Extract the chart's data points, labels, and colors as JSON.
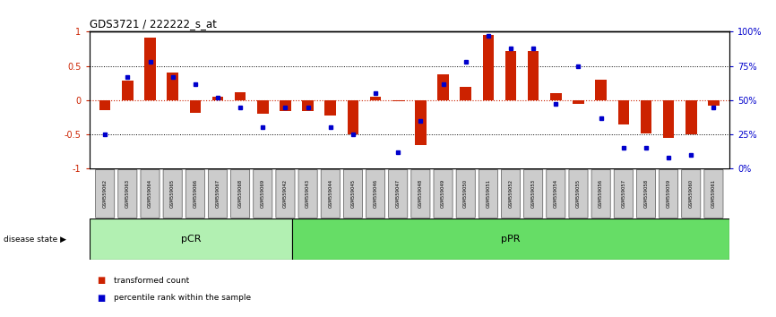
{
  "title": "GDS3721 / 222222_s_at",
  "samples": [
    "GSM559062",
    "GSM559063",
    "GSM559064",
    "GSM559065",
    "GSM559066",
    "GSM559067",
    "GSM559068",
    "GSM559069",
    "GSM559042",
    "GSM559043",
    "GSM559044",
    "GSM559045",
    "GSM559046",
    "GSM559047",
    "GSM559048",
    "GSM559049",
    "GSM559050",
    "GSM559051",
    "GSM559052",
    "GSM559053",
    "GSM559054",
    "GSM559055",
    "GSM559056",
    "GSM559057",
    "GSM559058",
    "GSM559059",
    "GSM559060",
    "GSM559061"
  ],
  "transformed_count": [
    -0.15,
    0.28,
    0.92,
    0.4,
    -0.18,
    0.05,
    0.12,
    -0.2,
    -0.16,
    -0.16,
    -0.22,
    -0.5,
    0.05,
    -0.02,
    -0.65,
    0.38,
    0.2,
    0.95,
    0.72,
    0.72,
    0.1,
    -0.05,
    0.3,
    -0.35,
    -0.48,
    -0.55,
    -0.5,
    -0.08
  ],
  "percentile_rank": [
    25,
    67,
    78,
    67,
    62,
    52,
    45,
    30,
    45,
    45,
    30,
    25,
    55,
    12,
    35,
    62,
    78,
    97,
    88,
    88,
    47,
    75,
    37,
    15,
    15,
    8,
    10,
    45
  ],
  "pCR_count": 9,
  "pPR_count": 19,
  "bar_color": "#cc2200",
  "dot_color": "#0000cc",
  "background_color": "#ffffff",
  "zero_line_color": "#cc2200",
  "pCR_color": "#b2f0b2",
  "pPR_color": "#66dd66",
  "label_color_left": "#cc2200",
  "label_color_right": "#0000cc",
  "right_ytick_labels": [
    "0%",
    "25%",
    "50%",
    "75%",
    "100%"
  ],
  "left_ytick_labels": [
    "-1",
    "-0.5",
    "0",
    "0.5",
    "1"
  ]
}
